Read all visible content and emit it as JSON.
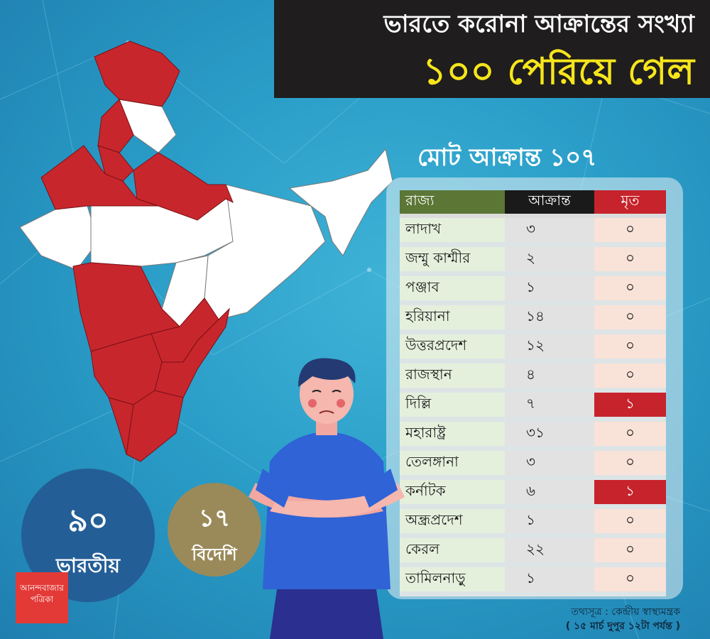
{
  "header": {
    "line1": "ভারতে করোনা আক্রান্তের সংখ্যা",
    "line2": "১০০ পেরিয়ে গেল"
  },
  "total_heading": "মোট আক্রান্ত ১০৭",
  "table": {
    "headers": {
      "state": "রাজ্য",
      "infected": "আক্রান্ত",
      "dead": "মৃত"
    },
    "rows": [
      {
        "state": "লাদাখ",
        "infected": "৩",
        "dead": "০",
        "dead_highlight": false
      },
      {
        "state": "জম্মু কাশ্মীর",
        "infected": "২",
        "dead": "০",
        "dead_highlight": false
      },
      {
        "state": "পঞ্জাব",
        "infected": "১",
        "dead": "০",
        "dead_highlight": false
      },
      {
        "state": "হরিয়ানা",
        "infected": "১৪",
        "dead": "০",
        "dead_highlight": false
      },
      {
        "state": "উত্তরপ্রদেশ",
        "infected": "১২",
        "dead": "০",
        "dead_highlight": false
      },
      {
        "state": "রাজস্থান",
        "infected": "৪",
        "dead": "০",
        "dead_highlight": false
      },
      {
        "state": "দিল্লি",
        "infected": "৭",
        "dead": "১",
        "dead_highlight": true
      },
      {
        "state": "মহারাষ্ট্র",
        "infected": "৩১",
        "dead": "০",
        "dead_highlight": false
      },
      {
        "state": "তেলঙ্গানা",
        "infected": "৩",
        "dead": "০",
        "dead_highlight": false
      },
      {
        "state": "কর্নাটক",
        "infected": "৬",
        "dead": "১",
        "dead_highlight": true
      },
      {
        "state": "অন্ধ্রপ্রদেশ",
        "infected": "১",
        "dead": "০",
        "dead_highlight": false
      },
      {
        "state": "কেরল",
        "infected": "২২",
        "dead": "০",
        "dead_highlight": false
      },
      {
        "state": "তামিলনাড়ু",
        "infected": "১",
        "dead": "০",
        "dead_highlight": false
      }
    ]
  },
  "indian": {
    "count": "৯০",
    "label": "ভারতীয়"
  },
  "foreign": {
    "count": "১৭",
    "label": "বিদেশি"
  },
  "source": {
    "line1": "তথ্যসূত্র : কেন্দ্রীয় স্বাস্থ্যমন্ত্রক",
    "line2": "( ১৫ মার্চ দুপুর ১২টা পর্যন্ত )"
  },
  "logo": {
    "line1": "আনন্দবাজার",
    "line2": "পত্রিকা"
  },
  "colors": {
    "affected_state": "#c8262d",
    "unaffected_state": "#ffffff",
    "header_bg": "#1f1d1e",
    "header_highlight": "#f6e51b",
    "dead_highlight": "#c7232c"
  }
}
